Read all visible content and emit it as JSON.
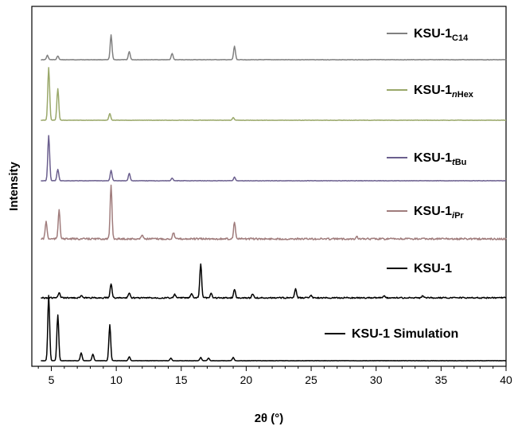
{
  "chart_data": {
    "type": "line",
    "title": "",
    "xlabel": "2θ (°)",
    "ylabel": "Intensity",
    "xlim": [
      3.5,
      40
    ],
    "x_major_ticks": [
      5,
      10,
      15,
      20,
      25,
      30,
      35,
      40
    ],
    "x_minor_step": 1,
    "y_ticks_shown": false,
    "grid": false,
    "legend_placement": "inline-right",
    "series": [
      {
        "legend_main": "KSU-1",
        "legend_sub": "C14",
        "color": "#808080",
        "peaks": [
          [
            4.7,
            0.18
          ],
          [
            5.5,
            0.15
          ],
          [
            9.6,
            1.0
          ],
          [
            11.0,
            0.33
          ],
          [
            14.3,
            0.25
          ],
          [
            19.1,
            0.55
          ]
        ]
      },
      {
        "legend_main": "KSU-1",
        "legend_sub": "nHex",
        "color": "#9aa86a",
        "peaks": [
          [
            4.8,
            1.0
          ],
          [
            5.5,
            0.6
          ],
          [
            9.5,
            0.13
          ],
          [
            19.0,
            0.05
          ]
        ]
      },
      {
        "legend_main": "KSU-1",
        "legend_sub": "tBu",
        "color": "#6b5f8e",
        "peaks": [
          [
            4.8,
            1.0
          ],
          [
            5.5,
            0.25
          ],
          [
            9.6,
            0.23
          ],
          [
            11.0,
            0.16
          ],
          [
            14.3,
            0.06
          ],
          [
            19.1,
            0.08
          ]
        ]
      },
      {
        "legend_main": "KSU-1",
        "legend_sub": "iPr",
        "color": "#a07c7c",
        "peaks": [
          [
            4.6,
            0.32
          ],
          [
            5.6,
            0.55
          ],
          [
            9.6,
            1.0
          ],
          [
            12.0,
            0.08
          ],
          [
            14.4,
            0.12
          ],
          [
            19.1,
            0.32
          ],
          [
            28.5,
            0.05
          ]
        ]
      },
      {
        "legend_main": "KSU-1",
        "legend_sub": "",
        "color": "#000000",
        "peaks": [
          [
            5.6,
            0.15
          ],
          [
            7.3,
            0.06
          ],
          [
            9.6,
            0.42
          ],
          [
            11.0,
            0.15
          ],
          [
            14.5,
            0.1
          ],
          [
            15.8,
            0.12
          ],
          [
            16.5,
            1.0
          ],
          [
            17.3,
            0.12
          ],
          [
            19.1,
            0.25
          ],
          [
            20.5,
            0.12
          ],
          [
            23.8,
            0.25
          ],
          [
            25.0,
            0.06
          ],
          [
            30.6,
            0.06
          ],
          [
            33.6,
            0.06
          ]
        ]
      },
      {
        "legend_main": "KSU-1 Simulation",
        "legend_sub": "",
        "color": "#000000",
        "peaks": [
          [
            4.8,
            1.0
          ],
          [
            5.5,
            0.7
          ],
          [
            7.3,
            0.12
          ],
          [
            8.2,
            0.1
          ],
          [
            9.5,
            0.55
          ],
          [
            11.0,
            0.06
          ],
          [
            14.2,
            0.04
          ],
          [
            16.5,
            0.05
          ],
          [
            17.1,
            0.04
          ],
          [
            19.0,
            0.05
          ]
        ]
      }
    ]
  }
}
